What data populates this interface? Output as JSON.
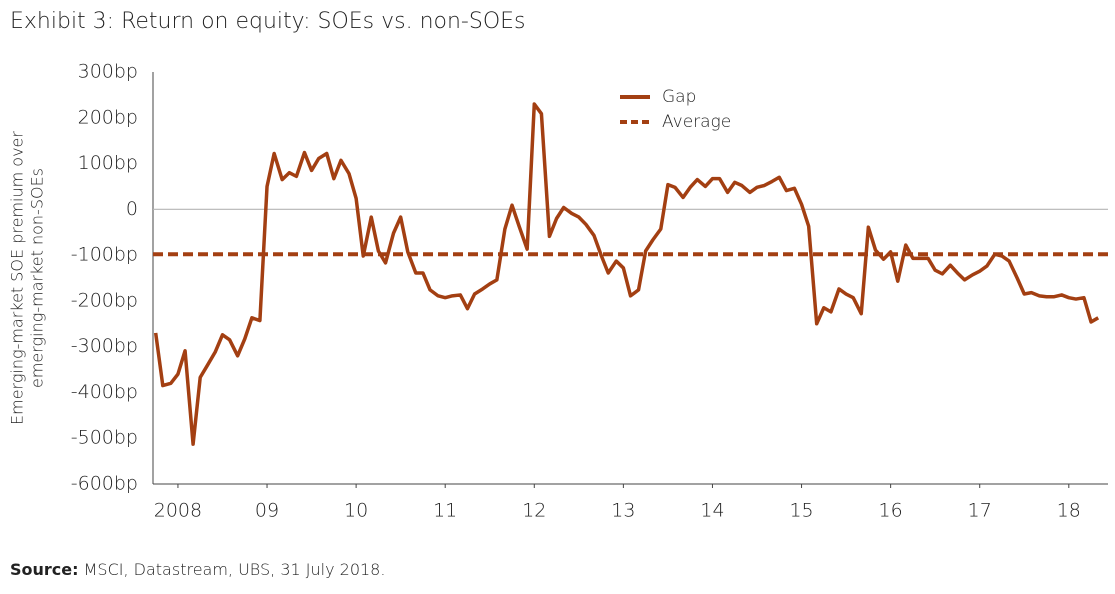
{
  "chart_data": {
    "type": "line",
    "title": "Exhibit 3: Return on equity: SOEs vs. non-SOEs",
    "y_label": [
      "Emerging-market SOE premium over",
      "emerging-market non-SOEs"
    ],
    "source": {
      "label": "Source:",
      "text": "MSCI, Datastream, UBS, 31 July 2018."
    },
    "xlim": [
      2007.72,
      2018.44
    ],
    "xticks": [
      {
        "value": 2008,
        "label": "2008"
      },
      {
        "value": 2009,
        "label": "09"
      },
      {
        "value": 2010,
        "label": "10"
      },
      {
        "value": 2011,
        "label": "11"
      },
      {
        "value": 2012,
        "label": "12"
      },
      {
        "value": 2013,
        "label": "13"
      },
      {
        "value": 2014,
        "label": "14"
      },
      {
        "value": 2015,
        "label": "15"
      },
      {
        "value": 2016,
        "label": "16"
      },
      {
        "value": 2017,
        "label": "17"
      },
      {
        "value": 2018,
        "label": "18"
      }
    ],
    "ylim": [
      -600,
      300
    ],
    "yticks": [
      {
        "value": 300,
        "label": "300bp"
      },
      {
        "value": 200,
        "label": "200bp"
      },
      {
        "value": 100,
        "label": "100bp"
      },
      0,
      {
        "value": -100,
        "label": "-100bp"
      },
      {
        "value": -200,
        "label": "-200bp"
      },
      {
        "value": -300,
        "label": "-300bp"
      },
      {
        "value": -400,
        "label": "-400bp"
      },
      {
        "value": -500,
        "label": "-500bp"
      },
      {
        "value": -600,
        "label": "-600bp"
      }
    ],
    "zero_line": true,
    "legend": "top-center",
    "series": [
      {
        "name": "Gap",
        "color": "#a33f12",
        "style": "solid",
        "x": [
          2007.75,
          2007.83,
          2007.92,
          2008.0,
          2008.08,
          2008.17,
          2008.25,
          2008.33,
          2008.42,
          2008.5,
          2008.58,
          2008.67,
          2008.75,
          2008.83,
          2008.92,
          2009.0,
          2009.08,
          2009.17,
          2009.25,
          2009.33,
          2009.42,
          2009.5,
          2009.58,
          2009.67,
          2009.75,
          2009.83,
          2009.92,
          2010.0,
          2010.08,
          2010.17,
          2010.25,
          2010.33,
          2010.42,
          2010.5,
          2010.58,
          2010.67,
          2010.75,
          2010.83,
          2010.92,
          2011.0,
          2011.08,
          2011.17,
          2011.25,
          2011.33,
          2011.42,
          2011.5,
          2011.58,
          2011.67,
          2011.75,
          2011.83,
          2011.92,
          2012.0,
          2012.08,
          2012.17,
          2012.25,
          2012.33,
          2012.42,
          2012.5,
          2012.58,
          2012.67,
          2012.75,
          2012.83,
          2012.92,
          2013.0,
          2013.08,
          2013.17,
          2013.25,
          2013.33,
          2013.42,
          2013.5,
          2013.58,
          2013.67,
          2013.75,
          2013.83,
          2013.92,
          2014.0,
          2014.08,
          2014.17,
          2014.25,
          2014.33,
          2014.42,
          2014.5,
          2014.58,
          2014.67,
          2014.75,
          2014.83,
          2014.92,
          2015.0,
          2015.08,
          2015.17,
          2015.25,
          2015.33,
          2015.42,
          2015.5,
          2015.58,
          2015.67,
          2015.75,
          2015.83,
          2015.92,
          2016.0,
          2016.08,
          2016.17,
          2016.25,
          2016.33,
          2016.42,
          2016.5,
          2016.58,
          2016.67,
          2016.75,
          2016.83,
          2016.92,
          2017.0,
          2017.08,
          2017.17,
          2017.25,
          2017.33,
          2017.42,
          2017.5,
          2017.58,
          2017.67,
          2017.75,
          2017.83,
          2017.92,
          2018.0,
          2018.08,
          2018.17,
          2018.25,
          2018.33
        ],
        "values": [
          -270,
          -385,
          -380,
          -360,
          -309,
          -513,
          -367,
          -341,
          -311,
          -274,
          -285,
          -320,
          -283,
          -237,
          -243,
          50,
          122,
          65,
          80,
          72,
          124,
          85,
          111,
          122,
          67,
          107,
          78,
          24,
          -102,
          -17,
          -91,
          -117,
          -52,
          -17,
          -93,
          -139,
          -139,
          -176,
          -189,
          -193,
          -189,
          -187,
          -217,
          -185,
          -174,
          -163,
          -154,
          -43,
          9,
          -37,
          -87,
          230,
          209,
          -59,
          -20,
          4,
          -9,
          -17,
          -33,
          -57,
          -100,
          -139,
          -113,
          -128,
          -189,
          -176,
          -91,
          -67,
          -43,
          54,
          48,
          26,
          48,
          65,
          50,
          67,
          67,
          37,
          59,
          52,
          37,
          48,
          52,
          61,
          70,
          41,
          46,
          11,
          -37,
          -250,
          -215,
          -224,
          -174,
          -185,
          -193,
          -228,
          -39,
          -89,
          -109,
          -93,
          -157,
          -78,
          -107,
          -107,
          -107,
          -133,
          -141,
          -122,
          -139,
          -154,
          -143,
          -135,
          -124,
          -98,
          -102,
          -113,
          -150,
          -185,
          -182,
          -189,
          -191,
          -191,
          -187,
          -193,
          -196,
          -193,
          -246,
          -237
        ]
      },
      {
        "name": "Average",
        "color": "#a33f12",
        "style": "dashed",
        "x": [
          2007.72,
          2018.44
        ],
        "values": [
          -98,
          -98
        ]
      }
    ]
  }
}
